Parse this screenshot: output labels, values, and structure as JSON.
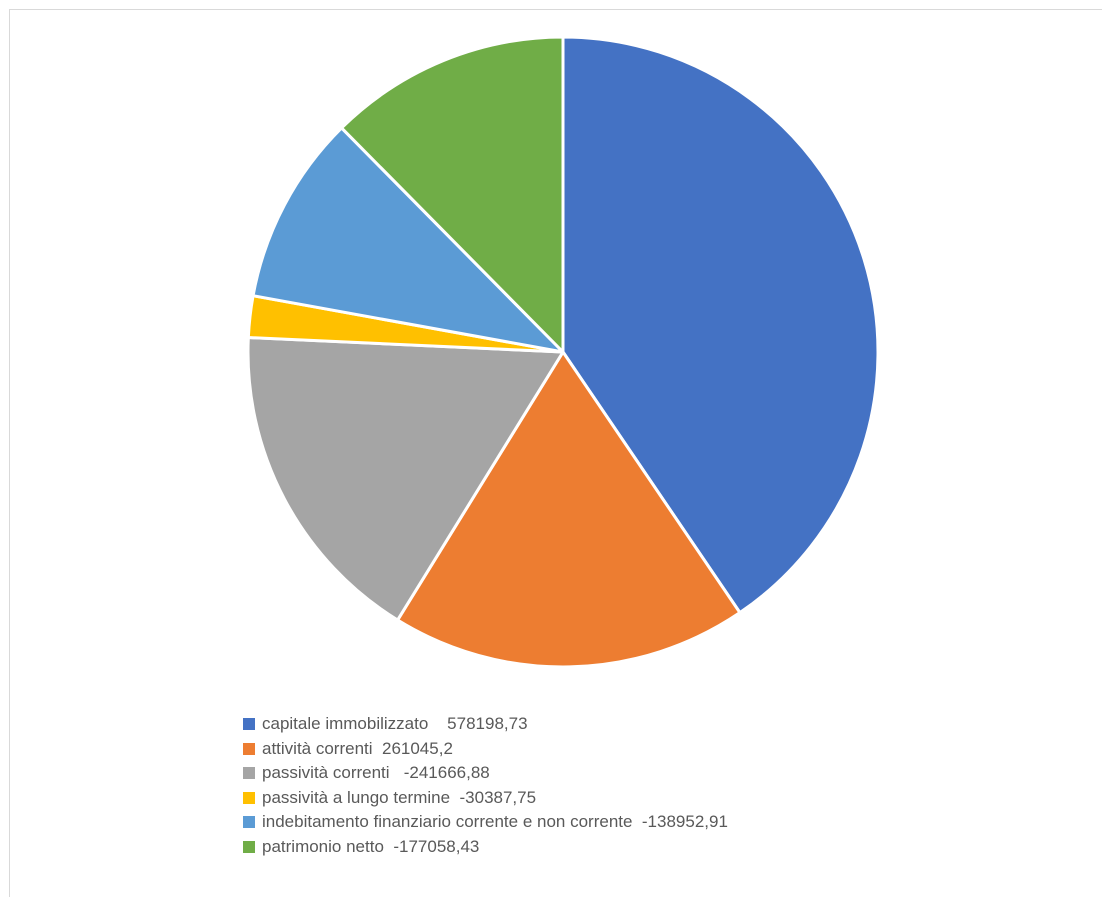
{
  "chart_data": {
    "type": "pie",
    "categories": [
      "capitale immobilizzato",
      "attività correnti",
      "passività correnti",
      "passività a lungo termine",
      "indebitamento finanziario corrente e non corrente",
      "patrimonio netto"
    ],
    "values": [
      578198.73,
      261045.2,
      241666.88,
      30387.75,
      138952.91,
      177058.43
    ],
    "colors": [
      "#4472c4",
      "#ed7d31",
      "#a5a5a5",
      "#ffc000",
      "#5b9bd5",
      "#70ad47"
    ],
    "legend": [
      {
        "label": "capitale immobilizzato    578198,73",
        "color": "#4472c4"
      },
      {
        "label": "attività correnti  261045,2",
        "color": "#ed7d31"
      },
      {
        "label": "passività correnti   -241666,88",
        "color": "#a5a5a5"
      },
      {
        "label": "passività a lungo termine  -30387,75",
        "color": "#ffc000"
      },
      {
        "label": "indebitamento finanziario corrente e non corrente  -138952,91",
        "color": "#5b9bd5"
      },
      {
        "label": "patrimonio netto  -177058,43",
        "color": "#70ad47"
      }
    ],
    "legend_position": "bottom",
    "start_angle": "12 o'clock, clockwise"
  }
}
